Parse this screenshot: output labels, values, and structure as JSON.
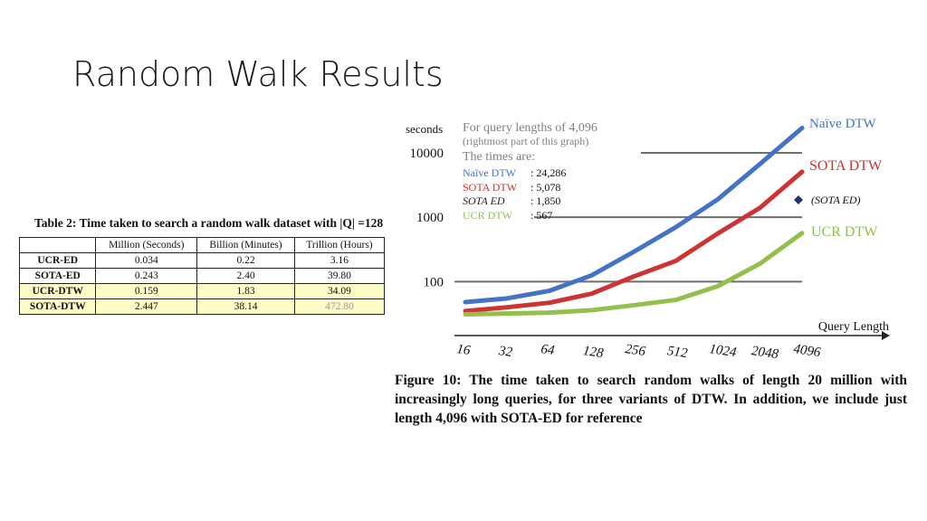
{
  "slide": {
    "title": "Random Walk Results"
  },
  "table": {
    "caption": "Table 2: Time taken to search a random walk dataset with |Q| =128",
    "headers": [
      "",
      "Million (Seconds)",
      "Billion (Minutes)",
      "Trillion (Hours)"
    ],
    "rows": [
      {
        "label": "UCR-ED",
        "values": [
          "0.034",
          "0.22",
          "3.16"
        ],
        "highlight": false
      },
      {
        "label": "SOTA-ED",
        "values": [
          "0.243",
          "2.40",
          "39.80"
        ],
        "highlight": false
      },
      {
        "label": "UCR-DTW",
        "values": [
          "0.159",
          "1.83",
          "34.09"
        ],
        "highlight": true
      },
      {
        "label": "SOTA-DTW",
        "values": [
          "2.447",
          "38.14",
          "472.80"
        ],
        "highlight": true
      }
    ],
    "highlight_color": "#fdfbc6"
  },
  "chart_data": {
    "type": "line",
    "title": "",
    "ylabel": "seconds",
    "xlabel": "Query Length",
    "x": [
      "16",
      "32",
      "64",
      "128",
      "256",
      "512",
      "1024",
      "2048",
      "4096"
    ],
    "yscale": "log",
    "ylim": [
      26,
      30000
    ],
    "yticks": [
      {
        "value": 100,
        "label": "100"
      },
      {
        "value": 1000,
        "label": "1000"
      },
      {
        "value": 10000,
        "label": "10000"
      }
    ],
    "grid": true,
    "series": [
      {
        "name": "Naïve DTW",
        "color": "#4472c4",
        "values": [
          48,
          55,
          72,
          125,
          290,
          700,
          1900,
          6700,
          24286
        ]
      },
      {
        "name": "SOTA DTW",
        "color": "#cc3333",
        "values": [
          35,
          40,
          47,
          65,
          120,
          210,
          560,
          1400,
          5078
        ]
      },
      {
        "name": "UCR DTW",
        "color": "#92c04a",
        "values": [
          31,
          32,
          33,
          36,
          43,
          52,
          85,
          190,
          567
        ]
      }
    ],
    "marker": {
      "name": "(SOTA ED)",
      "x": "4096",
      "value": 1850,
      "color": "#1f3864"
    },
    "annotation": {
      "lines": [
        {
          "text": "For query lengths of 4,096",
          "color": "#808080"
        },
        {
          "text": "(rightmost part of this graph)",
          "color": "#808080"
        },
        {
          "text": "The times are:",
          "color": "#808080"
        }
      ],
      "entries": [
        {
          "label": "Naïve DTW",
          "value": ": 24,286",
          "color": "#4472c4"
        },
        {
          "label": "SOTA DTW",
          "value": ": 5,078",
          "color": "#cc3333"
        },
        {
          "label": "SOTA ED",
          "value": ": 1,850",
          "color": "#222222"
        },
        {
          "label": "UCR DTW",
          "value": ": 567",
          "color": "#92c04a"
        }
      ]
    }
  },
  "figure": {
    "caption": "Figure 10: The time taken to search random walks of length 20 million with increasingly long queries, for three variants of DTW. In addition, we include just length 4,096 with SOTA-ED for reference"
  }
}
